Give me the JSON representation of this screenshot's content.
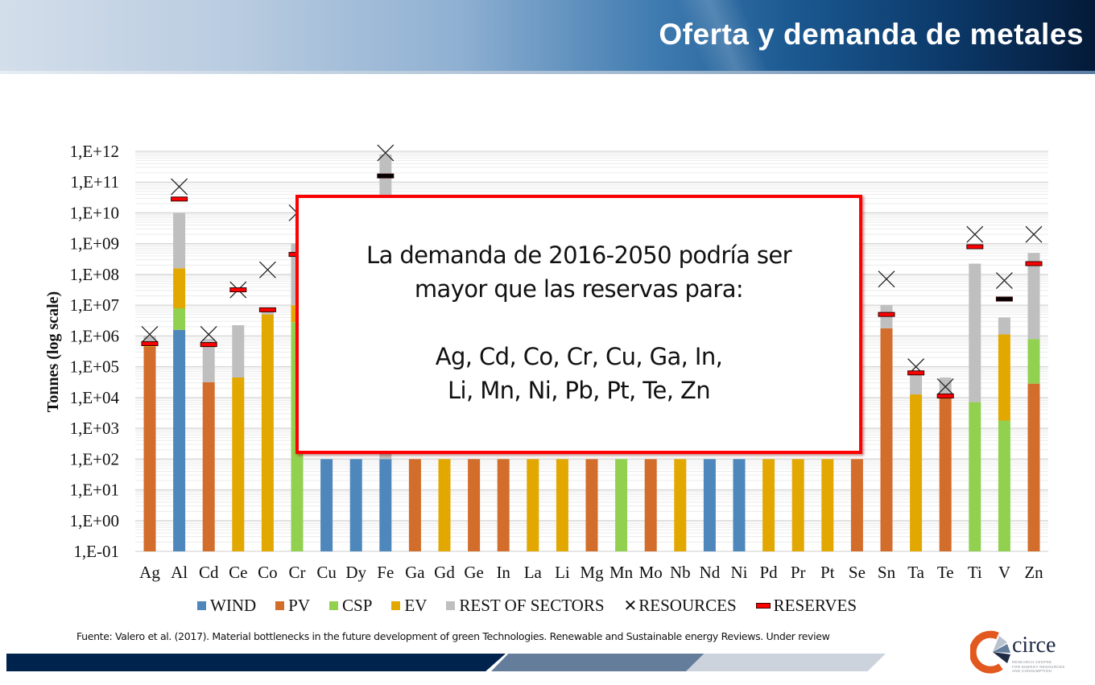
{
  "header": {
    "title": "Oferta y demanda de metales"
  },
  "callout": {
    "line1": "La demanda de 2016-2050 podría ser",
    "line2": "mayor que las reservas para:",
    "line3": "Ag, Cd, Co, Cr, Cu, Ga, In,",
    "line4": "Li, Mn, Ni, Pb, Pt, Te, Zn"
  },
  "source": "Fuente: Valero et al. (2017). Material bottlenecks in the future development of green Technologies. Renewable and Sustainable energy Reviews. Under review",
  "logo": {
    "name": "circe",
    "sub1": "RESEARCH CENTRE",
    "sub2": "FOR ENERGY RESOURCES",
    "sub3": "AND CONSUMPTION"
  },
  "colors": {
    "WIND": "#4e87bb",
    "PV": "#d36d2b",
    "CSP": "#92d050",
    "EV": "#e2a800",
    "REST": "#bfbfbf",
    "reserve_fill": "#ff0000",
    "reserve_dark": "#000000",
    "callout_border": "#ff0000"
  },
  "chart_data": {
    "type": "bar",
    "stacked": true,
    "log_scale": true,
    "ylabel": "Tonnes (log scale)",
    "ylim_log10": [
      -1,
      12
    ],
    "yticks": [
      "1,E-01",
      "1,E+00",
      "1,E+01",
      "1,E+02",
      "1,E+03",
      "1,E+04",
      "1,E+05",
      "1,E+06",
      "1,E+07",
      "1,E+08",
      "1,E+09",
      "1,E+10",
      "1,E+11",
      "1,E+12"
    ],
    "grid": true,
    "legend_position": "bottom",
    "legend": [
      {
        "key": "WIND",
        "label": "WIND",
        "kind": "bar"
      },
      {
        "key": "PV",
        "label": "PV",
        "kind": "bar"
      },
      {
        "key": "CSP",
        "label": "CSP",
        "kind": "bar"
      },
      {
        "key": "EV",
        "label": "EV",
        "kind": "bar"
      },
      {
        "key": "REST",
        "label": "REST OF SECTORS",
        "kind": "bar"
      },
      {
        "key": "RESOURCES",
        "label": "RESOURCES",
        "kind": "x"
      },
      {
        "key": "RESERVES",
        "label": "RESERVES",
        "kind": "dash"
      }
    ],
    "categories": [
      "Ag",
      "Al",
      "Cd",
      "Ce",
      "Co",
      "Cr",
      "Cu",
      "Dy",
      "Fe",
      "Ga",
      "Gd",
      "Ge",
      "In",
      "La",
      "Li",
      "Mg",
      "Mn",
      "Mo",
      "Nb",
      "Nd",
      "Ni",
      "Pd",
      "Pr",
      "Pt",
      "Se",
      "Sn",
      "Ta",
      "Te",
      "Ti",
      "V",
      "Zn"
    ],
    "note": "segments give cumulative top of each stacked segment in log10(tonnes), bottom-up; values hidden behind callout are not visible",
    "bars": [
      {
        "cat": "Ag",
        "segments": [
          {
            "s": "PV",
            "top": 5.65
          },
          {
            "s": "EV",
            "top": 5.72
          },
          {
            "s": "REST",
            "top": 6.0
          }
        ],
        "resources": 6.05,
        "reserves": 5.75
      },
      {
        "cat": "Al",
        "segments": [
          {
            "s": "WIND",
            "top": 6.2
          },
          {
            "s": "CSP",
            "top": 6.9
          },
          {
            "s": "EV",
            "top": 8.2
          },
          {
            "s": "REST",
            "top": 10.0
          }
        ],
        "resources": 10.85,
        "reserves": 10.45
      },
      {
        "cat": "Cd",
        "segments": [
          {
            "s": "PV",
            "top": 4.5
          },
          {
            "s": "REST",
            "top": 5.9
          }
        ],
        "resources": 6.05,
        "reserves": 5.72
      },
      {
        "cat": "Ce",
        "segments": [
          {
            "s": "EV",
            "top": 4.65
          },
          {
            "s": "REST",
            "top": 6.35
          }
        ],
        "resources": 7.5,
        "reserves": 7.5
      },
      {
        "cat": "Co",
        "segments": [
          {
            "s": "EV",
            "top": 6.7
          },
          {
            "s": "REST",
            "top": 6.9
          }
        ],
        "resources": 8.15,
        "reserves": 6.85
      },
      {
        "cat": "Cr",
        "segments": [
          {
            "s": "CSP",
            "top": 6.45
          },
          {
            "s": "EV",
            "top": 7.0
          },
          {
            "s": "REST",
            "top": 9.0
          }
        ],
        "resources": 10.0,
        "reserves": 8.65
      },
      {
        "cat": "Cu",
        "segments": [
          {
            "s": "WIND",
            "top": 2.0
          }
        ],
        "resources": null,
        "reserves": null
      },
      {
        "cat": "Dy",
        "segments": [
          {
            "s": "WIND",
            "top": 2.0
          }
        ],
        "resources": null,
        "reserves": null
      },
      {
        "cat": "Fe",
        "segments": [
          {
            "s": "WIND",
            "top": 2.0
          },
          {
            "s": "REST",
            "top": 11.9
          }
        ],
        "resources": 11.95,
        "reserves": 11.2,
        "reserves_color": "black"
      },
      {
        "cat": "Ga",
        "segments": [
          {
            "s": "PV",
            "top": 2.0
          }
        ],
        "resources": null,
        "reserves": null
      },
      {
        "cat": "Gd",
        "segments": [
          {
            "s": "EV",
            "top": 2.0
          }
        ],
        "resources": null,
        "reserves": null
      },
      {
        "cat": "Ge",
        "segments": [
          {
            "s": "PV",
            "top": 2.0
          }
        ],
        "resources": null,
        "reserves": null
      },
      {
        "cat": "In",
        "segments": [
          {
            "s": "PV",
            "top": 2.0
          }
        ],
        "resources": null,
        "reserves": null
      },
      {
        "cat": "La",
        "segments": [
          {
            "s": "EV",
            "top": 2.0
          }
        ],
        "resources": null,
        "reserves": null
      },
      {
        "cat": "Li",
        "segments": [
          {
            "s": "EV",
            "top": 2.0
          }
        ],
        "resources": null,
        "reserves": null
      },
      {
        "cat": "Mg",
        "segments": [
          {
            "s": "PV",
            "top": 2.0
          }
        ],
        "resources": null,
        "reserves": null
      },
      {
        "cat": "Mn",
        "segments": [
          {
            "s": "CSP",
            "top": 2.0
          }
        ],
        "resources": null,
        "reserves": null
      },
      {
        "cat": "Mo",
        "segments": [
          {
            "s": "PV",
            "top": 2.0
          }
        ],
        "resources": null,
        "reserves": null
      },
      {
        "cat": "Nb",
        "segments": [
          {
            "s": "EV",
            "top": 2.0
          }
        ],
        "resources": null,
        "reserves": null
      },
      {
        "cat": "Nd",
        "segments": [
          {
            "s": "WIND",
            "top": 2.0
          }
        ],
        "resources": null,
        "reserves": null
      },
      {
        "cat": "Ni",
        "segments": [
          {
            "s": "WIND",
            "top": 2.0
          }
        ],
        "resources": null,
        "reserves": null
      },
      {
        "cat": "Pd",
        "segments": [
          {
            "s": "EV",
            "top": 2.0
          }
        ],
        "resources": null,
        "reserves": null
      },
      {
        "cat": "Pr",
        "segments": [
          {
            "s": "EV",
            "top": 2.0
          }
        ],
        "resources": null,
        "reserves": null
      },
      {
        "cat": "Pt",
        "segments": [
          {
            "s": "EV",
            "top": 2.0
          }
        ],
        "resources": null,
        "reserves": null
      },
      {
        "cat": "Se",
        "segments": [
          {
            "s": "PV",
            "top": 2.0
          }
        ],
        "resources": null,
        "reserves": null
      },
      {
        "cat": "Sn",
        "segments": [
          {
            "s": "PV",
            "top": 6.25
          },
          {
            "s": "REST",
            "top": 7.0
          }
        ],
        "resources": 7.85,
        "reserves": 6.7
      },
      {
        "cat": "Ta",
        "segments": [
          {
            "s": "EV",
            "top": 4.1
          },
          {
            "s": "REST",
            "top": 4.75
          }
        ],
        "resources": 5.0,
        "reserves": 4.8
      },
      {
        "cat": "Te",
        "segments": [
          {
            "s": "PV",
            "top": 4.1
          },
          {
            "s": "REST",
            "top": 4.65
          }
        ],
        "resources": 4.35,
        "reserves": 4.05
      },
      {
        "cat": "Ti",
        "segments": [
          {
            "s": "CSP",
            "top": 3.85
          },
          {
            "s": "REST",
            "top": 8.35
          }
        ],
        "resources": 9.3,
        "reserves": 8.9
      },
      {
        "cat": "V",
        "segments": [
          {
            "s": "CSP",
            "top": 3.25
          },
          {
            "s": "EV",
            "top": 6.05
          },
          {
            "s": "REST",
            "top": 6.6
          }
        ],
        "resources": 7.8,
        "reserves": 7.2,
        "reserves_color": "black"
      },
      {
        "cat": "Zn",
        "segments": [
          {
            "s": "PV",
            "top": 4.45
          },
          {
            "s": "CSP",
            "top": 5.9
          },
          {
            "s": "REST",
            "top": 8.7
          }
        ],
        "resources": 9.3,
        "reserves": 8.35
      }
    ]
  }
}
